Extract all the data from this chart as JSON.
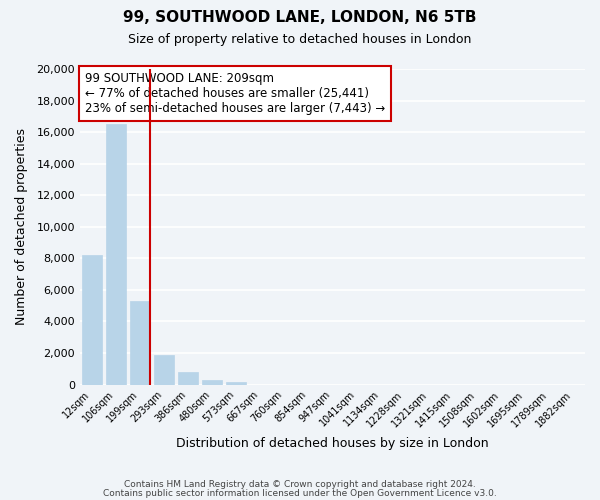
{
  "title": "99, SOUTHWOOD LANE, LONDON, N6 5TB",
  "subtitle": "Size of property relative to detached houses in London",
  "xlabel": "Distribution of detached houses by size in London",
  "ylabel": "Number of detached properties",
  "bin_labels": [
    "12sqm",
    "106sqm",
    "199sqm",
    "293sqm",
    "386sqm",
    "480sqm",
    "573sqm",
    "667sqm",
    "760sqm",
    "854sqm",
    "947sqm",
    "1041sqm",
    "1134sqm",
    "1228sqm",
    "1321sqm",
    "1415sqm",
    "1508sqm",
    "1602sqm",
    "1695sqm",
    "1789sqm",
    "1882sqm"
  ],
  "bar_values": [
    8200,
    16500,
    5300,
    1850,
    780,
    280,
    170,
    0,
    0,
    0,
    0,
    0,
    0,
    0,
    0,
    0,
    0,
    0,
    0,
    0,
    0
  ],
  "bar_color": "#b8d4e8",
  "marker_bin_index": 2,
  "annotation_title": "99 SOUTHWOOD LANE: 209sqm",
  "annotation_line1": "← 77% of detached houses are smaller (25,441)",
  "annotation_line2": "23% of semi-detached houses are larger (7,443) →",
  "annotation_box_color": "#ffffff",
  "annotation_box_edge": "#cc0000",
  "ylim": [
    0,
    20000
  ],
  "yticks": [
    0,
    2000,
    4000,
    6000,
    8000,
    10000,
    12000,
    14000,
    16000,
    18000,
    20000
  ],
  "footer1": "Contains HM Land Registry data © Crown copyright and database right 2024.",
  "footer2": "Contains public sector information licensed under the Open Government Licence v3.0.",
  "background_color": "#f0f4f8",
  "plot_background": "#f0f4f8",
  "grid_color": "#ffffff",
  "figsize": [
    6.0,
    5.0
  ],
  "dpi": 100
}
